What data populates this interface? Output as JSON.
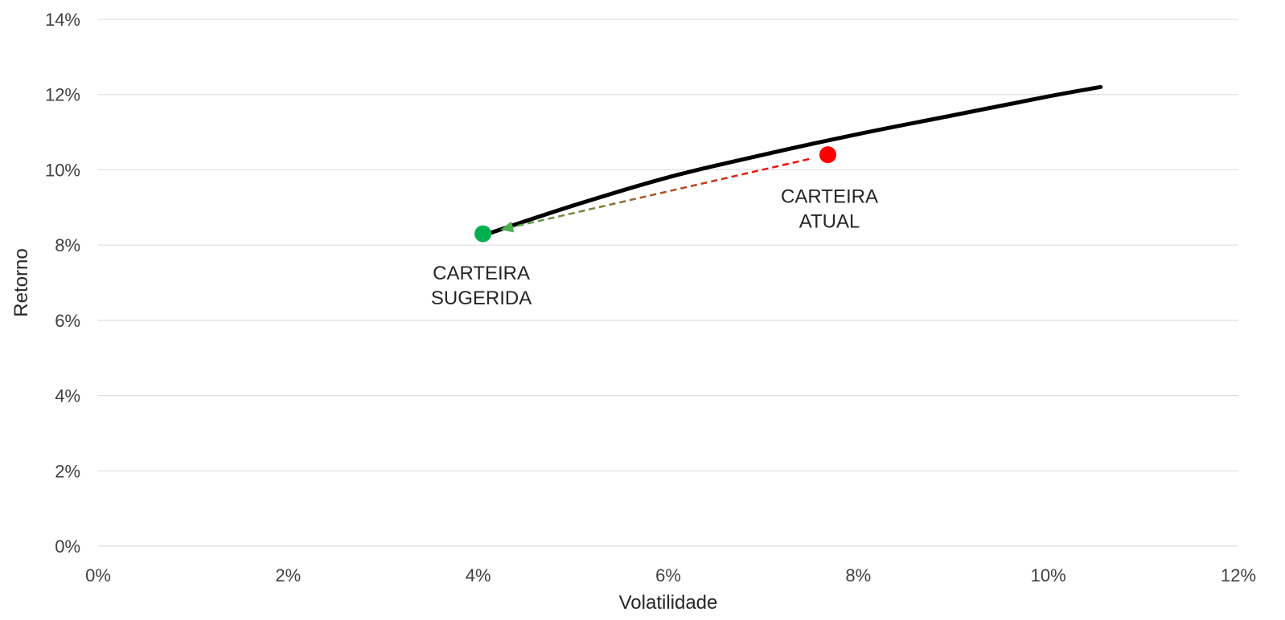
{
  "chart_data": {
    "type": "line",
    "xlabel": "Volatilidade",
    "ylabel": "Retorno",
    "xlim": [
      0,
      12
    ],
    "ylim": [
      0,
      14
    ],
    "x_ticks": [
      0,
      2,
      4,
      6,
      8,
      10,
      12
    ],
    "y_ticks": [
      0,
      2,
      4,
      6,
      8,
      10,
      12,
      14
    ],
    "x_tick_labels": [
      "0%",
      "2%",
      "4%",
      "6%",
      "8%",
      "10%",
      "12%"
    ],
    "y_tick_labels": [
      "0%",
      "2%",
      "4%",
      "6%",
      "8%",
      "10%",
      "12%",
      "14%"
    ],
    "grid": "horizontal",
    "legend": "none",
    "frontier": {
      "color": "#000000",
      "points": [
        {
          "x": 4.1,
          "y": 8.3
        },
        {
          "x": 5.0,
          "y": 9.05
        },
        {
          "x": 6.0,
          "y": 9.8
        },
        {
          "x": 7.0,
          "y": 10.4
        },
        {
          "x": 8.0,
          "y": 10.95
        },
        {
          "x": 9.0,
          "y": 11.45
        },
        {
          "x": 10.0,
          "y": 11.95
        },
        {
          "x": 10.55,
          "y": 12.2
        }
      ]
    },
    "portfolios": [
      {
        "label_lines": [
          "CARTEIRA",
          "SUGERIDA"
        ],
        "x": 4.05,
        "y": 8.3,
        "color": "#00b050"
      },
      {
        "label_lines": [
          "CARTEIRA",
          "ATUAL"
        ],
        "x": 7.68,
        "y": 10.4,
        "color": "#ff0000"
      }
    ],
    "movement_arrow": {
      "from_color": "#ff0000",
      "to_color": "#4caf50"
    }
  }
}
